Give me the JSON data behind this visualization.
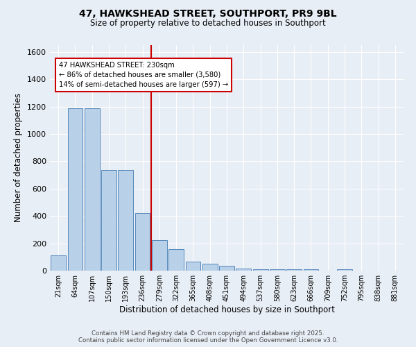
{
  "title_line1": "47, HAWKSHEAD STREET, SOUTHPORT, PR9 9BL",
  "title_line2": "Size of property relative to detached houses in Southport",
  "xlabel": "Distribution of detached houses by size in Southport",
  "ylabel": "Number of detached properties",
  "bar_labels": [
    "21sqm",
    "64sqm",
    "107sqm",
    "150sqm",
    "193sqm",
    "236sqm",
    "279sqm",
    "322sqm",
    "365sqm",
    "408sqm",
    "451sqm",
    "494sqm",
    "537sqm",
    "580sqm",
    "623sqm",
    "666sqm",
    "709sqm",
    "752sqm",
    "795sqm",
    "838sqm",
    "881sqm"
  ],
  "bar_values": [
    110,
    1190,
    1190,
    735,
    735,
    420,
    225,
    155,
    65,
    50,
    35,
    15,
    10,
    10,
    8,
    8,
    2,
    10,
    0,
    0,
    0
  ],
  "bar_color": "#b8d0e8",
  "bar_edge_color": "#5588bb",
  "background_color": "#e8eef5",
  "grid_color": "#ffffff",
  "vline_x_index": 5,
  "vline_color": "#cc0000",
  "annotation_title": "47 HAWKSHEAD STREET: 230sqm",
  "annotation_line1": "← 86% of detached houses are smaller (3,580)",
  "annotation_line2": "14% of semi-detached houses are larger (597) →",
  "annotation_box_color": "#ffffff",
  "annotation_border_color": "#cc0000",
  "ylim": [
    0,
    1650
  ],
  "yticks": [
    0,
    200,
    400,
    600,
    800,
    1000,
    1200,
    1400,
    1600
  ],
  "footer_line1": "Contains HM Land Registry data © Crown copyright and database right 2025.",
  "footer_line2": "Contains public sector information licensed under the Open Government Licence v3.0."
}
